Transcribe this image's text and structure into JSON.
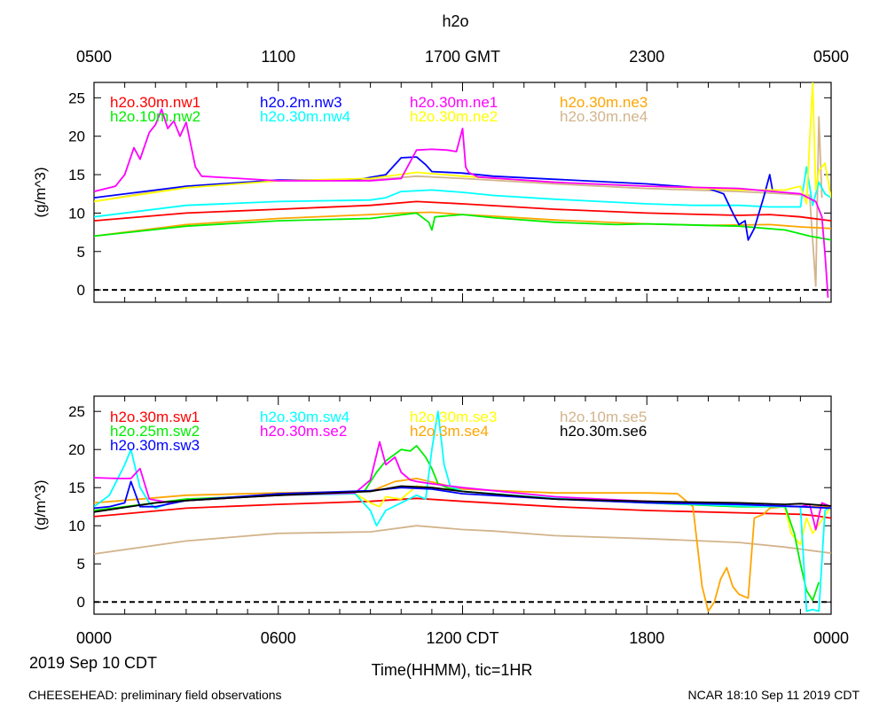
{
  "chart_data": [
    {
      "type": "line",
      "panel": "top",
      "title": "h2o",
      "ylabel": "(g/m^3)",
      "ylim": [
        -1.6,
        27
      ],
      "yticks": [
        0,
        5,
        10,
        15,
        20,
        25
      ],
      "xlim": [
        0,
        24
      ],
      "top_axis": {
        "labels": [
          "0500",
          "1100",
          "1700 GMT",
          "2300",
          "0500"
        ],
        "positions": [
          0,
          6,
          12,
          18,
          24
        ]
      },
      "zero_line": true,
      "legend": [
        {
          "name": "h2o.30m.nw1",
          "color": "#ff0000"
        },
        {
          "name": "h2o.2m.nw3",
          "color": "#0000ff"
        },
        {
          "name": "h2o.30m.ne1",
          "color": "#ff00ff"
        },
        {
          "name": "h2o.30m.ne3",
          "color": "#ffa500"
        },
        {
          "name": "h2o.10m.nw2",
          "color": "#00ee00"
        },
        {
          "name": "h2o.30m.nw4",
          "color": "#00ffff"
        },
        {
          "name": "h2o.30m.ne2",
          "color": "#ffff00"
        },
        {
          "name": "h2o.30m.ne4",
          "color": "#d2b48c"
        }
      ],
      "series": [
        {
          "name": "h2o.30m.ne4",
          "color": "#d2b48c",
          "x": [
            0,
            3,
            6,
            9,
            10.5,
            12,
            15,
            18,
            21,
            22.5,
            23.3,
            23.5,
            23.6,
            23.7
          ],
          "y": [
            11.5,
            13.5,
            14.2,
            14.3,
            14.8,
            14.5,
            13.8,
            13.2,
            12.8,
            12.5,
            12.3,
            0.5,
            22.5,
            12
          ]
        },
        {
          "name": "h2o.30m.ne3",
          "color": "#ffa500",
          "x": [
            0,
            3,
            6,
            9,
            10,
            11,
            12,
            13,
            15,
            18,
            20,
            22,
            23,
            24
          ],
          "y": [
            7,
            8.5,
            9.3,
            9.8,
            10,
            10.1,
            9.8,
            9.6,
            9.1,
            8.6,
            8.4,
            8.5,
            8.2,
            8
          ]
        },
        {
          "name": "h2o.30m.nw1",
          "color": "#ff0000",
          "x": [
            0,
            3,
            6,
            9,
            10.5,
            12,
            15,
            18,
            21,
            22,
            23,
            24
          ],
          "y": [
            9,
            10,
            10.5,
            11,
            11.5,
            11.2,
            10.5,
            10,
            9.7,
            9.8,
            9.5,
            9
          ]
        },
        {
          "name": "h2o.10m.nw2",
          "color": "#00ee00",
          "x": [
            0,
            3,
            6,
            9,
            10.5,
            10.9,
            11,
            11.1,
            12,
            13,
            15,
            17,
            18,
            21,
            22.5,
            23.3,
            24
          ],
          "y": [
            7,
            8.3,
            9,
            9.3,
            10,
            8.8,
            7.8,
            9.5,
            9.8,
            9.4,
            8.8,
            8.5,
            8.6,
            8.3,
            7.8,
            7,
            6.5
          ]
        },
        {
          "name": "h2o.30m.nw4",
          "color": "#00ffff",
          "x": [
            0,
            3,
            6,
            9,
            9.5,
            10,
            11,
            12,
            13,
            15,
            16.5,
            18,
            19.5,
            21,
            22,
            23,
            23.2,
            23.4,
            23.6,
            23.8,
            24
          ],
          "y": [
            9.5,
            11,
            11.5,
            11.7,
            12,
            12.8,
            13,
            12.7,
            12.3,
            11.8,
            11.5,
            11.2,
            11,
            11,
            10.8,
            10.8,
            16,
            11,
            14,
            12.5,
            12
          ]
        },
        {
          "name": "h2o.2m.nw3",
          "color": "#0000ff",
          "x": [
            0,
            3,
            6,
            8.5,
            9.5,
            10,
            10.5,
            10.8,
            11,
            12,
            13,
            15,
            18,
            20,
            20.5,
            20.8,
            21,
            21.2,
            21.3,
            21.5,
            21.8,
            22,
            22.1
          ],
          "y": [
            12,
            13.5,
            14.3,
            14.3,
            15,
            17.2,
            17.3,
            16.3,
            15.4,
            15.2,
            14.8,
            14.4,
            13.8,
            13.2,
            12.5,
            10,
            8.5,
            9,
            6.5,
            8,
            12,
            15,
            12.8
          ]
        },
        {
          "name": "h2o.30m.ne2",
          "color": "#ffff00",
          "x": [
            0,
            3,
            6,
            9,
            10.5,
            12,
            15,
            18,
            21,
            22.5,
            23,
            23.2,
            23.4,
            23.5,
            23.6,
            23.8,
            24
          ],
          "y": [
            11.5,
            13.3,
            14.2,
            14.5,
            15.3,
            14.8,
            14,
            13.5,
            13,
            13,
            13.5,
            11.2,
            27,
            13,
            15.5,
            16.5,
            12
          ]
        },
        {
          "name": "h2o.30m.ne1",
          "color": "#ff00ff",
          "x": [
            0,
            0.7,
            1,
            1.3,
            1.5,
            1.8,
            2,
            2.2,
            2.4,
            2.6,
            2.8,
            3,
            3.3,
            3.5,
            6,
            9,
            10,
            10.5,
            11,
            11.5,
            11.8,
            12,
            12.1,
            12.2,
            12.5,
            15,
            18,
            21,
            23,
            23.5,
            23.7,
            23.8,
            23.9
          ],
          "y": [
            12.8,
            13.5,
            15,
            18.5,
            17,
            20.5,
            21.5,
            23.5,
            21,
            22,
            20,
            21.8,
            16,
            14.8,
            14.2,
            14.2,
            14.5,
            18.2,
            18.3,
            18.2,
            18,
            21,
            16,
            15.3,
            14.7,
            14,
            13.5,
            13.2,
            12.5,
            11.5,
            9.5,
            4.7,
            -1
          ]
        }
      ]
    },
    {
      "type": "line",
      "panel": "bottom",
      "ylabel": "(g/m^3)",
      "ylim": [
        -1.6,
        27
      ],
      "yticks": [
        0,
        5,
        10,
        15,
        20,
        25
      ],
      "xlim": [
        0,
        24
      ],
      "xticks": {
        "labels": [
          "0000",
          "0600",
          "1200 CDT",
          "1800",
          "0000"
        ],
        "positions": [
          0,
          6,
          12,
          18,
          24
        ]
      },
      "xlabel": "Time(HHMM), tic=1HR",
      "date_label": "2019 Sep 10 CDT",
      "zero_line": true,
      "legend": [
        {
          "name": "h2o.30m.sw1",
          "color": "#ff0000"
        },
        {
          "name": "h2o.30m.sw4",
          "color": "#00ffff"
        },
        {
          "name": "h2o.30m.se3",
          "color": "#ffff00"
        },
        {
          "name": "h2o.10m.se5",
          "color": "#d2b48c"
        },
        {
          "name": "h2o.25m.sw2",
          "color": "#00ee00"
        },
        {
          "name": "h2o.30m.se2",
          "color": "#ff00ff"
        },
        {
          "name": "h2o.3m.se4",
          "color": "#ffa500"
        },
        {
          "name": "h2o.30m.se6",
          "color": "#000000"
        },
        {
          "name": "h2o.30m.sw3",
          "color": "#0000ff"
        }
      ],
      "series": [
        {
          "name": "h2o.10m.se5",
          "color": "#d2b48c",
          "x": [
            0,
            3,
            6,
            9,
            10.5,
            12,
            13,
            15,
            18,
            21,
            22.5,
            24
          ],
          "y": [
            6.3,
            8,
            9,
            9.2,
            10,
            9.5,
            9.3,
            8.7,
            8.3,
            7.8,
            7.2,
            6.4
          ]
        },
        {
          "name": "h2o.30m.sw1",
          "color": "#ff0000",
          "x": [
            0,
            3,
            6,
            9,
            10.5,
            12,
            15,
            18,
            21,
            23,
            23.5,
            24
          ],
          "y": [
            11.2,
            12.3,
            12.8,
            13.2,
            13.6,
            13.2,
            12.5,
            12,
            11.7,
            11.5,
            11.3,
            11
          ]
        },
        {
          "name": "h2o.3m.se4",
          "color": "#ffa500",
          "x": [
            0,
            3,
            6,
            9,
            9.8,
            10.5,
            12,
            15,
            18,
            19,
            19.5,
            19.8,
            20,
            20.2,
            20.4,
            20.6,
            20.8,
            21,
            21.3,
            21.5,
            21.8,
            22,
            22.5,
            23,
            24
          ],
          "y": [
            13,
            14,
            14.3,
            14.5,
            15.8,
            16.2,
            14.8,
            14.3,
            14.3,
            14.2,
            12.5,
            2,
            -1.2,
            0,
            3,
            4.5,
            2,
            1,
            0.5,
            11,
            11.5,
            12.3,
            12.5,
            12.5,
            12.5
          ]
        },
        {
          "name": "h2o.30m.se3",
          "color": "#ffff00",
          "x": [
            0,
            3,
            6,
            8.5,
            9,
            9.3,
            9.5,
            10,
            10.5,
            11,
            12,
            15,
            18,
            21,
            22,
            22.5,
            22.7,
            23,
            23.2,
            23.4,
            24
          ],
          "y": [
            12,
            13.5,
            14,
            14.2,
            13,
            12.5,
            13.8,
            13.5,
            15.2,
            15,
            14.5,
            13.6,
            13,
            12.5,
            12.6,
            12.4,
            9,
            7.5,
            11,
            9,
            12.5
          ]
        },
        {
          "name": "h2o.25m.sw2",
          "color": "#00ee00",
          "x": [
            0,
            3,
            6,
            8.8,
            9.2,
            9.5,
            10,
            10.3,
            10.5,
            10.8,
            11,
            11.2,
            11.5,
            12,
            15,
            18,
            21,
            22.5,
            22.8,
            23,
            23.2,
            23.4,
            23.6
          ],
          "y": [
            12,
            13.5,
            14,
            14.5,
            17,
            18.5,
            20,
            19.8,
            20.5,
            19,
            17.5,
            15.5,
            15,
            14.5,
            13.5,
            13,
            12.5,
            12.5,
            9,
            5,
            1.5,
            0.2,
            2.6
          ]
        },
        {
          "name": "h2o.30m.sw4",
          "color": "#00ffff",
          "x": [
            0,
            0.5,
            1,
            1.2,
            1.5,
            1.8,
            2,
            2.5,
            3,
            6,
            8.5,
            9,
            9.2,
            9.5,
            10,
            10.5,
            10.8,
            11,
            11.2,
            11.4,
            11.6,
            12,
            15,
            18,
            21,
            22.5,
            23,
            23.2,
            23.4,
            23.6,
            23.8,
            24
          ],
          "y": [
            12.5,
            14,
            18,
            20,
            15,
            13,
            12.3,
            13,
            13.3,
            14,
            14.2,
            12,
            10,
            12,
            13,
            14,
            13.5,
            20,
            25,
            18,
            15.2,
            14.5,
            13.6,
            13,
            12.6,
            12.5,
            12.5,
            -1.2,
            -1,
            -1.2,
            12,
            12.5
          ]
        },
        {
          "name": "h2o.30m.se2",
          "color": "#ff00ff",
          "x": [
            0,
            0.8,
            1.2,
            1.5,
            1.8,
            2.5,
            3,
            6,
            8.5,
            9,
            9.3,
            9.5,
            9.8,
            10,
            10.3,
            10.5,
            11,
            12,
            15,
            18,
            21,
            23,
            23.3,
            23.5,
            23.7,
            24
          ],
          "y": [
            16.3,
            16.2,
            16.2,
            17.5,
            13.5,
            13,
            13.3,
            14,
            14.3,
            16,
            21,
            18,
            19,
            17,
            16,
            15.8,
            15.5,
            15,
            13.8,
            13.2,
            12.8,
            12.5,
            12.8,
            9.5,
            13,
            12.5
          ]
        },
        {
          "name": "h2o.30m.sw3",
          "color": "#0000ff",
          "x": [
            0,
            0.5,
            1,
            1.2,
            1.5,
            2,
            3,
            6,
            9,
            10,
            11,
            12,
            15,
            18,
            21,
            23,
            24
          ],
          "y": [
            12.3,
            12.5,
            13,
            15.8,
            12.5,
            12.5,
            13.3,
            14.2,
            14.6,
            15,
            14.8,
            14.2,
            13.5,
            13,
            12.8,
            12.5,
            12.3
          ]
        },
        {
          "name": "h2o.30m.se6",
          "color": "#000000",
          "x": [
            0,
            2,
            3,
            6,
            9,
            10,
            11,
            12,
            15,
            18,
            21,
            22.5,
            23,
            24
          ],
          "y": [
            11.8,
            13,
            13.3,
            14,
            14.5,
            15.2,
            15,
            14.5,
            13.5,
            13.2,
            13,
            12.8,
            12.9,
            12.6
          ]
        }
      ]
    }
  ],
  "footer": {
    "left": "CHEESEHEAD: preliminary field observations",
    "right": "NCAR 18:10 Sep 11 2019 CDT"
  }
}
